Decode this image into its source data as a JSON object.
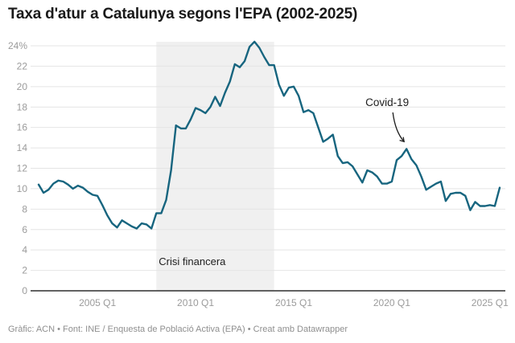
{
  "header": {
    "title": "Taxa d'atur a Catalunya segons l'EPA (2002-2025)"
  },
  "footer": {
    "credit": "Gràfic: ACN • Font: INE / Enquesta de Població Activa (EPA) • Creat amb Datawrapper"
  },
  "colors": {
    "line": "#17657f",
    "crisis_band": "#f0f0f0",
    "gridline": "#e4e4e4",
    "axis_line": "#2e2e2e",
    "tick_text": "#9b9b9b",
    "annotation_text": "#1d1d1d",
    "title_text": "#1a1a1a",
    "footer_text": "#8f8f8f"
  },
  "chart_data": {
    "type": "line",
    "title": "Taxa d'atur a Catalunya segons l'EPA (2002-2025)",
    "unit": "%",
    "frequency": "quarterly",
    "x_range": [
      "2002 Q1",
      "2025 Q3"
    ],
    "ylim": [
      0,
      24
    ],
    "grid": true,
    "legend": "none",
    "y_ticks": [
      {
        "value": 24,
        "label": "24%"
      },
      {
        "value": 22,
        "label": "22"
      },
      {
        "value": 20,
        "label": "20"
      },
      {
        "value": 18,
        "label": "18"
      },
      {
        "value": 16,
        "label": "16"
      },
      {
        "value": 14,
        "label": "14"
      },
      {
        "value": 12,
        "label": "12"
      },
      {
        "value": 10,
        "label": "10"
      },
      {
        "value": 8,
        "label": "8"
      },
      {
        "value": 6,
        "label": "6"
      },
      {
        "value": 4,
        "label": "4"
      },
      {
        "value": 2,
        "label": "2"
      },
      {
        "value": 0,
        "label": "0"
      }
    ],
    "x_ticks": [
      "2005 Q1",
      "2010 Q1",
      "2015 Q1",
      "2020 Q1",
      "2025 Q1"
    ],
    "series": [
      {
        "year": 2002,
        "values": [
          10.4,
          9.6,
          9.9,
          10.5
        ]
      },
      {
        "year": 2003,
        "values": [
          10.8,
          10.7,
          10.4,
          10.0
        ]
      },
      {
        "year": 2004,
        "values": [
          10.3,
          10.1,
          9.7,
          9.4
        ]
      },
      {
        "year": 2005,
        "values": [
          9.3,
          8.4,
          7.4,
          6.6
        ]
      },
      {
        "year": 2006,
        "values": [
          6.2,
          6.9,
          6.6,
          6.3
        ]
      },
      {
        "year": 2007,
        "values": [
          6.1,
          6.6,
          6.5,
          6.1
        ]
      },
      {
        "year": 2008,
        "values": [
          7.6,
          7.6,
          8.9,
          11.8
        ]
      },
      {
        "year": 2009,
        "values": [
          16.2,
          15.9,
          15.9,
          16.8
        ]
      },
      {
        "year": 2010,
        "values": [
          17.9,
          17.7,
          17.4,
          18.0
        ]
      },
      {
        "year": 2011,
        "values": [
          19.0,
          18.1,
          19.4,
          20.5
        ]
      },
      {
        "year": 2012,
        "values": [
          22.2,
          21.9,
          22.5,
          23.9
        ]
      },
      {
        "year": 2013,
        "values": [
          24.4,
          23.8,
          22.9,
          22.1
        ]
      },
      {
        "year": 2014,
        "values": [
          22.1,
          20.2,
          19.1,
          19.9
        ]
      },
      {
        "year": 2015,
        "values": [
          20.0,
          19.1,
          17.5,
          17.7
        ]
      },
      {
        "year": 2016,
        "values": [
          17.4,
          16.0,
          14.6,
          14.9
        ]
      },
      {
        "year": 2017,
        "values": [
          15.3,
          13.2,
          12.5,
          12.6
        ]
      },
      {
        "year": 2018,
        "values": [
          12.2,
          11.4,
          10.6,
          11.8
        ]
      },
      {
        "year": 2019,
        "values": [
          11.6,
          11.2,
          10.5,
          10.5
        ]
      },
      {
        "year": 2020,
        "values": [
          10.7,
          12.8,
          13.2,
          13.9
        ]
      },
      {
        "year": 2021,
        "values": [
          12.9,
          12.3,
          11.2,
          9.9
        ]
      },
      {
        "year": 2022,
        "values": [
          10.2,
          10.5,
          10.7,
          8.8
        ]
      },
      {
        "year": 2023,
        "values": [
          9.5,
          9.6,
          9.6,
          9.3
        ]
      },
      {
        "year": 2024,
        "values": [
          7.9,
          8.7,
          8.3,
          8.3
        ]
      },
      {
        "year": 2025,
        "values": [
          8.4,
          8.3,
          10.1
        ]
      }
    ],
    "annotations": {
      "crisis_band": {
        "label": "Crisi financera",
        "from": "2008 Q1",
        "to": "2014 Q1"
      },
      "covid": {
        "label": "Covid-19",
        "points_to": "2020 Q4",
        "value": 13.9
      }
    }
  }
}
